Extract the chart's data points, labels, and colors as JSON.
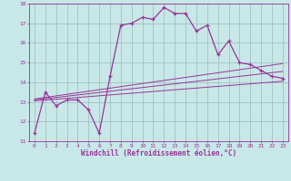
{
  "xlabel": "Windchill (Refroidissement éolien,°C)",
  "ylabel": "",
  "background_color": "#c8e8e8",
  "line_color": "#993399",
  "grid_color": "#99bbbb",
  "xlim": [
    -0.5,
    23.5
  ],
  "ylim": [
    11,
    18
  ],
  "xticks": [
    0,
    1,
    2,
    3,
    4,
    5,
    6,
    7,
    8,
    9,
    10,
    11,
    12,
    13,
    14,
    15,
    16,
    17,
    18,
    19,
    20,
    21,
    22,
    23
  ],
  "yticks": [
    11,
    12,
    13,
    14,
    15,
    16,
    17,
    18
  ],
  "main_x": [
    0,
    1,
    2,
    3,
    4,
    5,
    6,
    7,
    8,
    9,
    10,
    11,
    12,
    13,
    14,
    15,
    16,
    17,
    18,
    19,
    20,
    21,
    22,
    23
  ],
  "main_y": [
    11.4,
    13.5,
    12.8,
    13.1,
    13.1,
    12.6,
    11.4,
    14.3,
    16.9,
    17.0,
    17.3,
    17.2,
    17.8,
    17.5,
    17.5,
    16.6,
    16.9,
    15.4,
    16.1,
    15.0,
    14.9,
    14.6,
    14.3,
    14.2
  ],
  "line1_x": [
    0,
    23
  ],
  "line1_y": [
    13.05,
    14.05
  ],
  "line2_x": [
    0,
    23
  ],
  "line2_y": [
    13.1,
    14.55
  ],
  "line3_x": [
    0,
    23
  ],
  "line3_y": [
    13.15,
    14.95
  ],
  "tick_fontsize": 4.5,
  "xlabel_fontsize": 5.5
}
